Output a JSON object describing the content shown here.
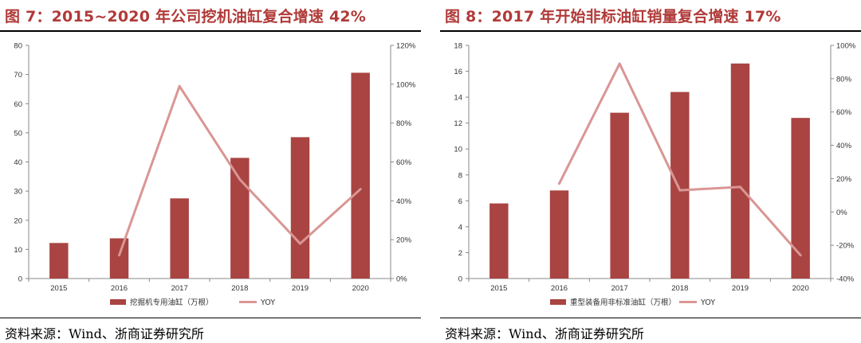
{
  "panels": [
    {
      "title": "图 7：2015~2020 年公司挖机油缸复合增速 42%",
      "source": "资料来源：Wind、浙商证券研究所"
    },
    {
      "title": "图 8：2017 年开始非标油缸销量复合增速 17%",
      "source": "资料来源：Wind、浙商证券研究所"
    }
  ],
  "chart_data": [
    {
      "type": "bar",
      "categories": [
        "2015",
        "2016",
        "2017",
        "2018",
        "2019",
        "2020"
      ],
      "series": [
        {
          "name": "挖掘机专用油缸（万根）",
          "type": "bar",
          "axis": "left",
          "values": [
            12.2,
            13.8,
            27.5,
            41.4,
            48.5,
            70.6
          ],
          "color": "#a94442"
        },
        {
          "name": "YOY",
          "type": "line",
          "axis": "right",
          "values": [
            null,
            12,
            99,
            51,
            18,
            46
          ],
          "color": "#d99694"
        }
      ],
      "ylim": [
        0,
        80
      ],
      "yticks": [
        0,
        10,
        20,
        30,
        40,
        50,
        60,
        70,
        80
      ],
      "y2lim": [
        0,
        120
      ],
      "y2ticks": [
        "0%",
        "20%",
        "40%",
        "60%",
        "80%",
        "100%",
        "120%"
      ],
      "legend": "bottom",
      "grid": false
    },
    {
      "type": "bar",
      "categories": [
        "2015",
        "2016",
        "2017",
        "2018",
        "2019",
        "2020"
      ],
      "series": [
        {
          "name": "重型装备用非标准油缸（万根）",
          "type": "bar",
          "axis": "left",
          "values": [
            5.8,
            6.8,
            12.8,
            14.4,
            16.6,
            12.4
          ],
          "color": "#a94442"
        },
        {
          "name": "YOY",
          "type": "line",
          "axis": "right",
          "values": [
            null,
            17,
            89,
            13,
            15,
            -26
          ],
          "color": "#d99694"
        }
      ],
      "ylim": [
        0,
        18
      ],
      "yticks": [
        0,
        2,
        4,
        6,
        8,
        10,
        12,
        14,
        16,
        18
      ],
      "y2lim": [
        -40,
        100
      ],
      "y2ticks": [
        "-40%",
        "-20%",
        "0%",
        "20%",
        "40%",
        "60%",
        "80%",
        "100%"
      ],
      "legend": "bottom",
      "grid": false
    }
  ]
}
